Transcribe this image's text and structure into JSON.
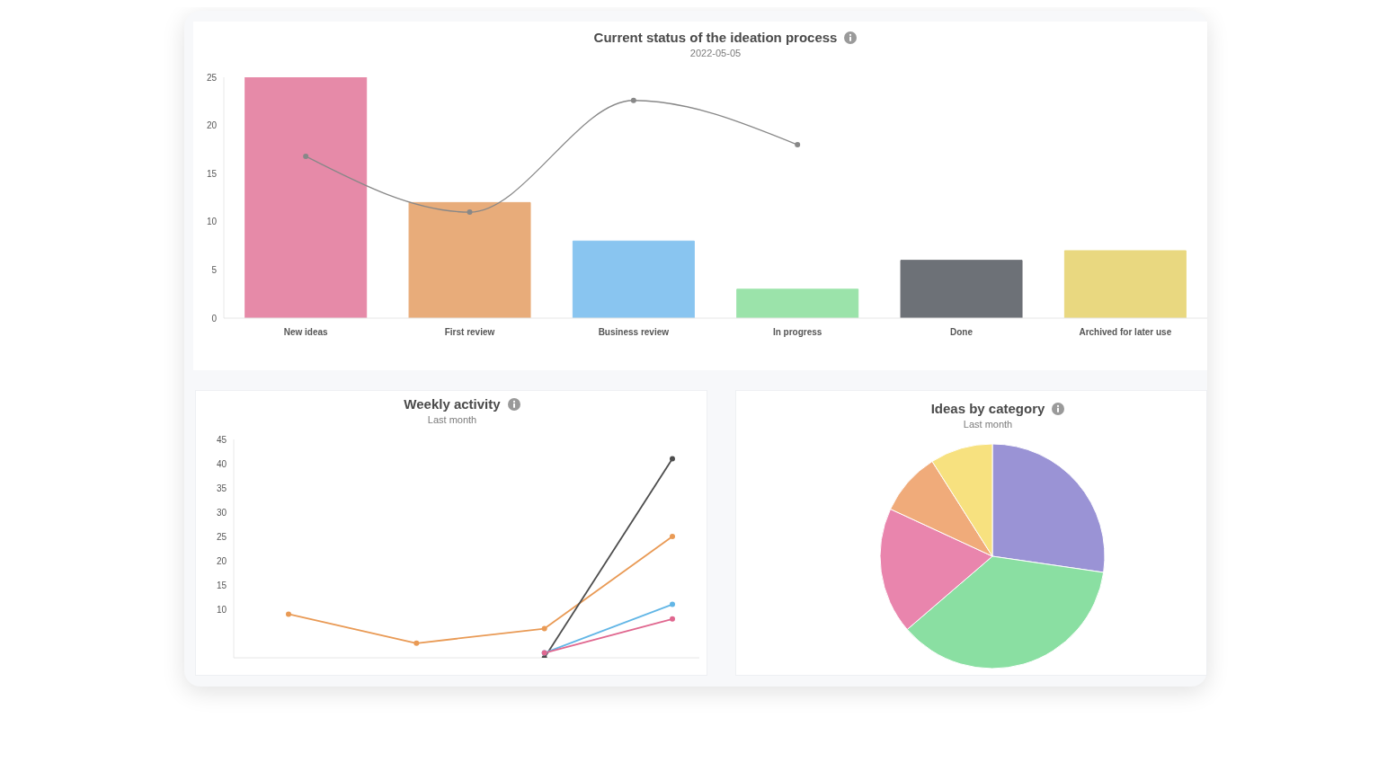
{
  "chart_data": [
    {
      "type": "bar",
      "title": "Current status of the ideation process",
      "subtitle": "2022-05-05",
      "categories": [
        "New ideas",
        "First review",
        "Business review",
        "In progress",
        "Done",
        "Archived for later use"
      ],
      "series": [
        {
          "type": "bar",
          "values": [
            25,
            12,
            8,
            3,
            6,
            7
          ],
          "colors": [
            "#e68aa8",
            "#e8ac7a",
            "#89c5f0",
            "#9be3aa",
            "#6d7177",
            "#e9d880"
          ]
        },
        {
          "type": "line",
          "color": "#888888",
          "values": [
            16.8,
            11,
            22.6,
            18,
            null,
            null
          ]
        }
      ],
      "ylim": [
        0,
        25
      ],
      "yticks": [
        0,
        5,
        10,
        15,
        20,
        25
      ],
      "marker": "circle"
    },
    {
      "type": "line",
      "title": "Weekly activity",
      "subtitle": "Last month",
      "categories": [
        null,
        null,
        null,
        null
      ],
      "series": [
        {
          "color": "#e99a55",
          "values": [
            9,
            3,
            6,
            25
          ]
        },
        {
          "color": "#4d4d4d",
          "values": [
            null,
            null,
            0,
            41
          ]
        },
        {
          "color": "#62b6e6",
          "values": [
            null,
            null,
            1,
            11
          ]
        },
        {
          "color": "#e0678f",
          "values": [
            null,
            null,
            1,
            8
          ]
        }
      ],
      "ylim": [
        0,
        45
      ],
      "yticks": [
        10,
        15,
        20,
        25,
        30,
        35,
        40,
        45
      ],
      "marker": "circle"
    },
    {
      "type": "pie",
      "title": "Ideas by category",
      "subtitle": "Last month",
      "categories": [
        null,
        null,
        null,
        null,
        null
      ],
      "values": [
        27.3,
        36.4,
        18.2,
        9.1,
        9.0
      ],
      "colors": [
        "#9a93d5",
        "#8adfa2",
        "#e985ad",
        "#f0ab7a",
        "#f7e17f"
      ]
    }
  ]
}
